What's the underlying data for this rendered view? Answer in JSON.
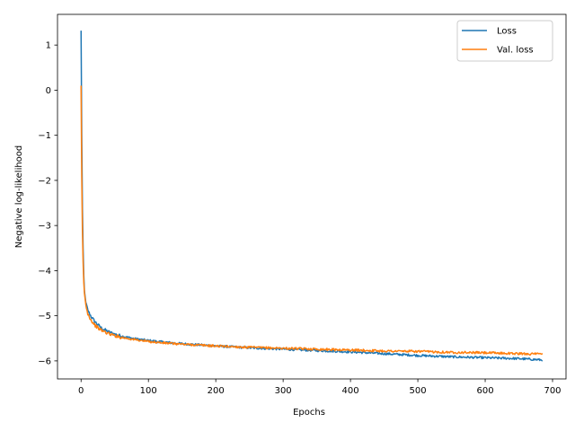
{
  "chart_data": {
    "type": "line",
    "xlabel": "Epochs",
    "ylabel": "Negative log-likelihood",
    "xlim": [
      -35,
      720
    ],
    "ylim": [
      -6.4,
      1.68
    ],
    "xticks": [
      0,
      100,
      200,
      300,
      400,
      500,
      600,
      700
    ],
    "yticks": [
      1,
      0,
      -1,
      -2,
      -3,
      -4,
      -5,
      -6
    ],
    "xtick_labels": [
      "0",
      "100",
      "200",
      "300",
      "400",
      "500",
      "600",
      "700"
    ],
    "ytick_labels": [
      "1",
      "0",
      "−1",
      "−2",
      "−3",
      "−4",
      "−5",
      "−6"
    ],
    "legend_position": "top-right",
    "grid": false,
    "series": [
      {
        "name": "Loss",
        "color": "#1f77b4",
        "x": [
          0,
          1,
          2,
          3,
          4,
          5,
          7,
          10,
          15,
          20,
          25,
          30,
          40,
          50,
          60,
          80,
          100,
          120,
          150,
          200,
          250,
          300,
          350,
          400,
          450,
          500,
          550,
          600,
          650,
          685
        ],
        "y": [
          1.32,
          -1.0,
          -2.6,
          -3.5,
          -4.1,
          -4.45,
          -4.7,
          -4.88,
          -5.02,
          -5.12,
          -5.2,
          -5.27,
          -5.35,
          -5.41,
          -5.45,
          -5.51,
          -5.55,
          -5.58,
          -5.62,
          -5.67,
          -5.71,
          -5.74,
          -5.77,
          -5.8,
          -5.84,
          -5.88,
          -5.91,
          -5.93,
          -5.95,
          -5.98
        ]
      },
      {
        "name": "Val. loss",
        "color": "#ff7f0e",
        "x": [
          0,
          1,
          2,
          3,
          4,
          5,
          7,
          10,
          15,
          20,
          25,
          30,
          40,
          50,
          60,
          80,
          100,
          120,
          150,
          200,
          250,
          300,
          350,
          400,
          450,
          500,
          550,
          600,
          650,
          685
        ],
        "y": [
          0.1,
          -1.9,
          -3.1,
          -3.8,
          -4.25,
          -4.5,
          -4.75,
          -4.95,
          -5.1,
          -5.2,
          -5.27,
          -5.32,
          -5.39,
          -5.44,
          -5.48,
          -5.53,
          -5.57,
          -5.6,
          -5.63,
          -5.67,
          -5.7,
          -5.72,
          -5.74,
          -5.76,
          -5.78,
          -5.79,
          -5.81,
          -5.82,
          -5.84,
          -5.85
        ]
      }
    ]
  }
}
